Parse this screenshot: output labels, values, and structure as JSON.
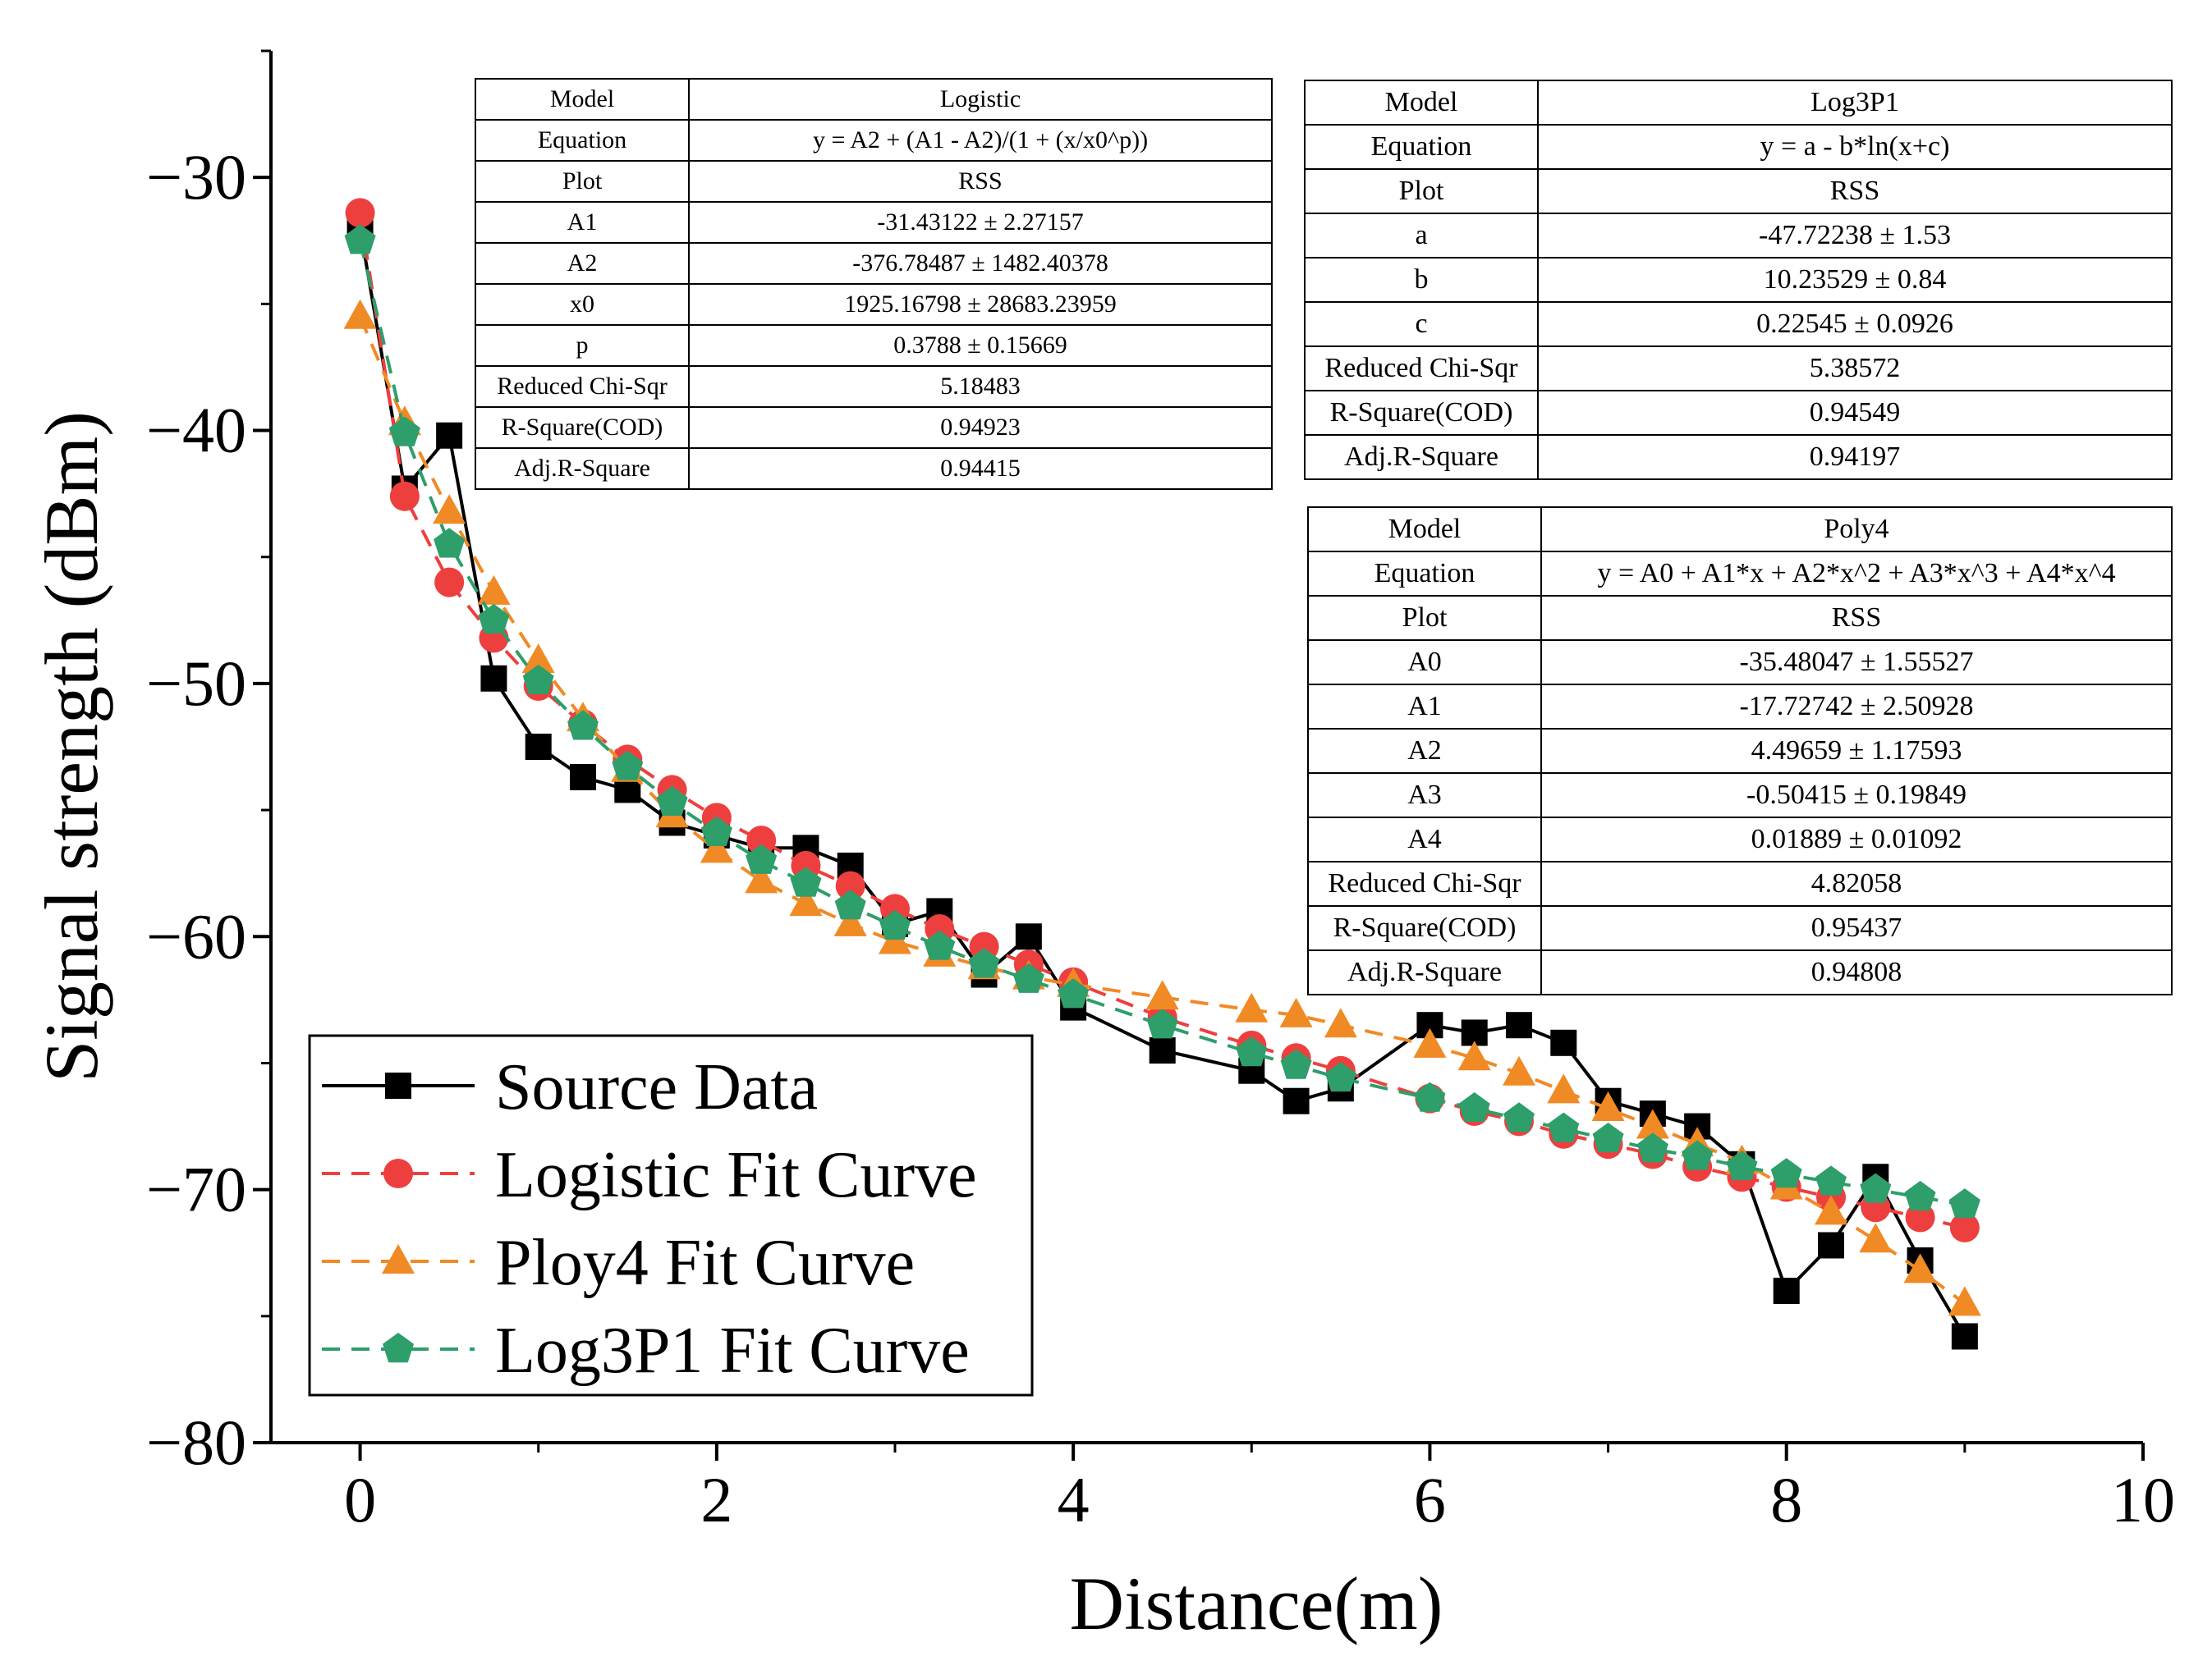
{
  "chart_data": {
    "type": "line",
    "xlabel": "Distance(m)",
    "ylabel": "Signal strength (dBm)",
    "xlim": [
      -0.5,
      10
    ],
    "ylim": [
      -80,
      -25
    ],
    "x_ticks": [
      0,
      2,
      4,
      6,
      8,
      10
    ],
    "x_tick_labels": [
      "0",
      "2",
      "4",
      "6",
      "8",
      "10"
    ],
    "y_ticks": [
      -30,
      -40,
      -50,
      -60,
      -70,
      -80
    ],
    "y_tick_labels": [
      "−30",
      "−40",
      "−50",
      "−60",
      "−70",
      "−80"
    ],
    "legend_position": "bottom-left",
    "x": [
      0,
      0.25,
      0.5,
      0.75,
      1,
      1.25,
      1.5,
      1.75,
      2,
      2.25,
      2.5,
      2.75,
      3,
      3.25,
      3.5,
      3.75,
      4,
      4.5,
      5,
      5.25,
      5.5,
      6,
      6.25,
      6.5,
      6.75,
      7,
      7.25,
      7.5,
      7.75,
      8,
      8.25,
      8.5,
      8.75,
      9
    ],
    "series": [
      {
        "name": "Source Data",
        "color": "#000000",
        "line_style": "solid",
        "marker": "square",
        "values": [
          -32.0,
          -42.3,
          -40.2,
          -49.8,
          -52.5,
          -53.7,
          -54.2,
          -55.5,
          -56.0,
          -56.5,
          -56.5,
          -57.2,
          -59.5,
          -59.0,
          -61.5,
          -60.0,
          -62.8,
          -64.5,
          -65.3,
          -66.5,
          -66.0,
          -63.5,
          -63.8,
          -63.5,
          -64.2,
          -66.5,
          -67.0,
          -67.5,
          -69.0,
          -74.0,
          -72.2,
          -69.5,
          -72.8,
          -75.8
        ]
      },
      {
        "name": "Logistic Fit Curve",
        "color": "#ee3f3f",
        "line_style": "dashed",
        "marker": "circle",
        "values": [
          -31.4,
          -42.6,
          -46.0,
          -48.2,
          -50.1,
          -51.6,
          -53.0,
          -54.2,
          -55.3,
          -56.2,
          -57.2,
          -58.0,
          -58.9,
          -59.7,
          -60.4,
          -61.1,
          -61.8,
          -63.2,
          -64.3,
          -64.8,
          -65.3,
          -66.4,
          -66.9,
          -67.3,
          -67.8,
          -68.2,
          -68.6,
          -69.1,
          -69.5,
          -69.9,
          -70.3,
          -70.7,
          -71.1,
          -71.5
        ]
      },
      {
        "name": "Ploy4 Fit Curve",
        "color": "#f08a24",
        "line_style": "dashed",
        "marker": "triangle",
        "values": [
          -35.5,
          -39.7,
          -43.2,
          -46.4,
          -49.1,
          -51.4,
          -53.4,
          -55.2,
          -56.6,
          -57.8,
          -58.7,
          -59.5,
          -60.2,
          -60.7,
          -61.2,
          -61.6,
          -61.9,
          -62.4,
          -62.9,
          -63.1,
          -63.5,
          -64.3,
          -64.8,
          -65.4,
          -66.1,
          -66.8,
          -67.5,
          -68.2,
          -68.9,
          -69.9,
          -70.9,
          -72.0,
          -73.2,
          -74.5
        ]
      },
      {
        "name": "Log3P1 Fit Curve",
        "color": "#2e9e6b",
        "line_style": "dashed",
        "marker": "pentagon",
        "values": [
          -32.5,
          -40.1,
          -44.5,
          -47.5,
          -49.9,
          -51.7,
          -53.3,
          -54.7,
          -55.9,
          -57.0,
          -57.9,
          -58.8,
          -59.6,
          -60.4,
          -61.1,
          -61.7,
          -62.3,
          -63.5,
          -64.6,
          -65.1,
          -65.6,
          -66.4,
          -66.8,
          -67.2,
          -67.6,
          -68.0,
          -68.4,
          -68.7,
          -69.1,
          -69.4,
          -69.7,
          -70.0,
          -70.3,
          -70.6
        ]
      }
    ]
  },
  "tables": {
    "logistic": [
      [
        "Model",
        "Logistic"
      ],
      [
        "Equation",
        "y =  A2 + (A1 - A2)/(1 + (x/x0^p))"
      ],
      [
        "Plot",
        "RSS"
      ],
      [
        "A1",
        "-31.43122 ± 2.27157"
      ],
      [
        "A2",
        "-376.78487 ± 1482.40378"
      ],
      [
        "x0",
        "1925.16798 ± 28683.23959"
      ],
      [
        "p",
        "0.3788 ± 0.15669"
      ],
      [
        "Reduced Chi-Sqr",
        "5.18483"
      ],
      [
        "R-Square(COD)",
        "0.94923"
      ],
      [
        "Adj.R-Square",
        "0.94415"
      ]
    ],
    "log3p1": [
      [
        "Model",
        "Log3P1"
      ],
      [
        "Equation",
        "y =  a - b*ln(x+c)"
      ],
      [
        "Plot",
        "RSS"
      ],
      [
        "a",
        "-47.72238 ± 1.53"
      ],
      [
        "b",
        "10.23529 ± 0.84"
      ],
      [
        "c",
        "0.22545 ± 0.0926"
      ],
      [
        "Reduced Chi-Sqr",
        "5.38572"
      ],
      [
        "R-Square(COD)",
        "0.94549"
      ],
      [
        "Adj.R-Square",
        "0.94197"
      ]
    ],
    "poly4": [
      [
        "Model",
        "Poly4"
      ],
      [
        "Equation",
        "y = A0 + A1*x + A2*x^2 + A3*x^3 +  A4*x^4"
      ],
      [
        "Plot",
        "RSS"
      ],
      [
        "A0",
        "-35.48047 ± 1.55527"
      ],
      [
        "A1",
        "-17.72742 ± 2.50928"
      ],
      [
        "A2",
        "4.49659 ± 1.17593"
      ],
      [
        "A3",
        "-0.50415 ± 0.19849"
      ],
      [
        "A4",
        "0.01889 ± 0.01092"
      ],
      [
        "Reduced Chi-Sqr",
        "4.82058"
      ],
      [
        "R-Square(COD)",
        "0.95437"
      ],
      [
        "Adj.R-Square",
        "0.94808"
      ]
    ]
  }
}
